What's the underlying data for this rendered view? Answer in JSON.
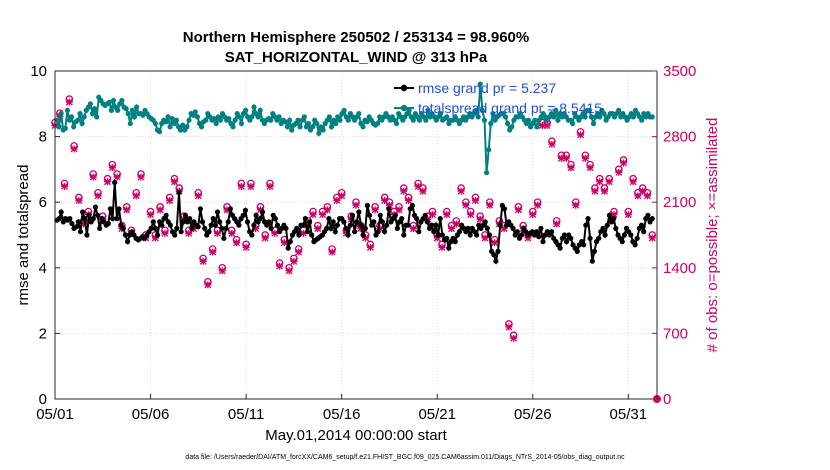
{
  "chart_data": {
    "type": "line",
    "title_line1": "Northern Hemisphere 250502 / 253134 = 98.960%",
    "title_line2": "SAT_HORIZONTAL_WIND @ 313 hPa",
    "xlabel": "May.01,2014 00:00:00 start",
    "ylabel": "rmse and totalspread",
    "ylabel_right": "# of obs: o=possible; ×=assimilated",
    "footnote": "data file: /Users/raeder/DAI/ATM_forcXX/CAM6_setup/f.e21.FHIST_BGC.f09_025.CAM6assim.011/Diags_NTrS_2014-05/obs_diag_output.nc",
    "xlim": [
      0,
      31.5
    ],
    "ylim": [
      0,
      10
    ],
    "ylim_right": [
      0,
      3500
    ],
    "x_ticks": [
      0,
      5,
      10,
      15,
      20,
      25,
      30
    ],
    "x_tick_labels": [
      "05/01",
      "05/06",
      "05/11",
      "05/16",
      "05/21",
      "05/26",
      "05/31"
    ],
    "y_ticks": [
      0,
      2,
      4,
      6,
      8,
      10
    ],
    "y_tick_labels": [
      "0",
      "2",
      "4",
      "6",
      "8",
      "10"
    ],
    "y_right_ticks": [
      0,
      700,
      1400,
      2100,
      2800,
      3500
    ],
    "y_right_tick_labels": [
      "0",
      "700",
      "1400",
      "2100",
      "2800",
      "3500"
    ],
    "grid": true,
    "series": [
      {
        "name": "rmse grand pr = 5.237",
        "color": "#000000",
        "values": [
          5.45,
          5.5,
          5.7,
          5.4,
          5.5,
          5.45,
          5.5,
          5.35,
          5.2,
          5.25,
          5.4,
          5.1,
          5.7,
          5.5,
          5.0,
          5.6,
          5.4,
          5.5,
          5.85,
          5.6,
          5.2,
          5.5,
          5.4,
          5.3,
          5.35,
          5.8,
          5.5,
          6.6,
          5.5,
          5.8,
          5.3,
          5.2,
          5.0,
          4.8,
          5.0,
          5.1,
          5.0,
          4.9,
          4.85,
          4.9,
          4.95,
          4.9,
          5.0,
          5.1,
          5.2,
          5.4,
          5.2,
          5.0,
          5.4,
          5.3,
          5.5,
          5.6,
          5.4,
          5.3,
          5.1,
          5.0,
          5.2,
          6.3,
          5.1,
          5.4,
          5.6,
          5.4,
          5.5,
          5.2,
          5.4,
          5.3,
          5.25,
          5.8,
          5.4,
          5.2,
          5.0,
          5.1,
          5.3,
          5.5,
          5.3,
          5.7,
          5.4,
          5.2,
          4.9,
          5.2,
          5.4,
          5.8,
          5.6,
          5.5,
          5.4,
          5.3,
          5.5,
          5.6,
          5.75,
          5.4,
          5.1,
          5.0,
          5.3,
          5.6,
          5.4,
          5.5,
          5.7,
          5.4,
          5.3,
          5.4,
          5.2,
          5.6,
          5.5,
          5.3,
          5.1,
          5.2,
          5.3,
          5.2,
          4.6,
          4.8,
          5.0,
          5.1,
          5.2,
          5.0,
          5.3,
          5.3,
          5.5,
          5.1,
          5.4,
          5.0,
          4.8,
          4.85,
          4.9,
          4.95,
          5.0,
          5.1,
          5.2,
          5.5,
          5.2,
          5.4,
          5.1,
          5.3,
          5.5,
          5.5,
          5.4,
          5.2,
          5.0,
          5.3,
          5.6,
          5.1,
          5.4,
          5.7,
          5.3,
          5.0,
          5.2,
          5.9,
          5.6,
          5.3,
          5.4,
          5.0,
          5.1,
          5.6,
          5.4,
          5.1,
          5.3,
          5.8,
          5.4,
          5.5,
          5.6,
          5.2,
          5.4,
          5.5,
          5.0,
          5.3,
          5.3,
          5.8,
          5.9,
          5.6,
          5.5,
          5.1,
          5.4,
          5.5,
          5.6,
          5.4,
          5.2,
          5.3,
          5.1,
          5.3,
          5.0,
          5.5,
          5.0,
          4.85,
          4.9,
          4.6,
          4.8,
          4.9,
          4.8,
          5.0,
          5.1,
          5.3,
          5.2,
          5.1,
          5.2,
          5.0,
          5.2,
          5.1,
          5.0,
          5.3,
          5.2,
          5.3,
          5.4,
          5.2,
          5.0,
          4.5,
          4.4,
          4.2,
          4.5,
          5.3,
          5.9,
          5.8,
          5.3,
          5.4,
          5.3,
          5.2,
          5.0,
          5.1,
          4.9,
          5.0,
          5.2,
          5.1,
          5.0,
          5.05,
          5.1,
          5.0,
          5.1,
          4.95,
          5.2,
          4.8,
          5.0,
          5.1,
          5.0,
          5.1,
          4.9,
          4.8,
          4.7,
          4.6,
          4.9,
          5.0,
          4.8,
          5.0,
          4.9,
          4.7,
          4.6,
          4.5,
          4.7,
          4.8,
          4.7,
          5.3,
          5.5,
          4.9,
          4.2,
          4.5,
          4.8,
          4.9,
          5.1,
          5.2,
          5.0,
          5.3,
          5.6,
          5.4,
          5.5,
          5.2,
          5.0,
          4.9,
          4.8,
          5.0,
          5.2,
          5.1,
          5.0,
          4.8,
          4.7,
          4.9,
          5.2,
          5.3,
          5.1,
          5.5,
          5.6,
          5.4,
          5.5
        ]
      },
      {
        "name": "totalspread grand pr = 8.5415",
        "color": "#008080",
        "values": [
          8.5,
          8.3,
          8.7,
          8.2,
          8.25,
          8.8,
          8.5,
          8.6,
          8.3,
          8.45,
          8.5,
          8.7,
          8.4,
          8.6,
          8.8,
          8.9,
          9.0,
          8.7,
          8.85,
          8.6,
          9.2,
          9.1,
          9.0,
          8.95,
          9.0,
          9.05,
          8.8,
          9.1,
          8.9,
          8.8,
          9.0,
          9.1,
          8.9,
          8.85,
          8.7,
          8.4,
          8.8,
          8.6,
          8.9,
          8.7,
          8.7,
          8.65,
          8.8,
          8.7,
          8.6,
          8.55,
          8.5,
          8.4,
          8.2,
          8.15,
          8.4,
          8.5,
          8.45,
          8.6,
          8.3,
          8.55,
          8.4,
          8.5,
          8.3,
          8.2,
          8.35,
          8.2,
          8.3,
          8.5,
          8.7,
          8.65,
          8.75,
          8.6,
          8.4,
          8.3,
          8.45,
          8.5,
          8.7,
          8.6,
          8.5,
          8.55,
          8.4,
          8.6,
          8.5,
          8.7,
          8.6,
          8.5,
          8.55,
          8.4,
          8.3,
          8.5,
          8.7,
          8.6,
          8.4,
          8.7,
          8.8,
          8.6,
          8.5,
          8.6,
          8.9,
          8.7,
          8.6,
          8.8,
          8.5,
          8.4,
          8.5,
          8.55,
          8.5,
          8.7,
          8.6,
          8.5,
          8.6,
          8.4,
          8.5,
          8.45,
          8.3,
          8.5,
          8.2,
          8.35,
          8.4,
          8.5,
          8.3,
          8.5,
          8.6,
          8.3,
          8.4,
          8.2,
          8.3,
          8.5,
          8.4,
          8.1,
          8.3,
          8.2,
          8.4,
          8.5,
          8.6,
          8.3,
          8.5,
          8.4,
          8.6,
          8.5,
          8.7,
          8.8,
          8.6,
          8.5,
          8.7,
          8.6,
          8.5,
          8.6,
          8.7,
          8.4,
          8.3,
          8.5,
          8.45,
          8.6,
          8.5,
          8.4,
          8.35,
          8.4,
          8.6,
          8.5,
          8.6,
          8.7,
          8.6,
          8.5,
          8.6,
          8.5,
          8.4,
          8.7,
          8.6,
          8.5,
          8.6,
          8.7,
          8.8,
          8.6,
          8.5,
          8.7,
          8.6,
          8.5,
          8.7,
          8.6,
          8.5,
          8.8,
          8.6,
          8.7,
          8.6,
          8.5,
          8.6,
          8.7,
          8.5,
          8.55,
          8.6,
          8.4,
          8.5,
          8.5,
          8.6,
          8.5,
          8.4,
          8.5,
          8.6,
          8.5,
          8.6,
          8.7,
          8.6,
          8.7,
          8.8,
          8.6,
          9.6,
          8.8,
          8.5,
          6.9,
          7.6,
          8.4,
          8.7,
          8.5,
          8.6,
          8.65,
          8.7,
          8.7,
          8.6,
          8.4,
          8.2,
          8.3,
          8.5,
          8.6,
          8.6,
          8.7,
          8.6,
          8.5,
          8.4,
          8.5,
          8.3,
          8.4,
          8.5,
          8.3,
          8.5,
          8.6,
          8.7,
          8.6,
          8.5,
          8.6,
          8.7,
          8.6,
          8.8,
          8.5,
          8.7,
          8.6,
          8.7,
          8.6,
          8.5,
          8.5,
          8.4,
          8.7,
          8.6,
          8.5,
          8.6,
          8.7,
          8.6,
          8.8,
          8.8,
          8.6,
          8.4,
          8.6,
          8.7,
          8.6,
          8.8,
          8.7,
          8.5,
          8.6,
          8.7,
          8.7,
          8.6,
          8.7,
          8.8,
          8.6,
          8.7,
          8.6,
          8.5,
          8.6,
          8.7,
          8.6,
          8.8,
          8.7,
          8.6,
          8.5,
          8.7,
          8.6,
          8.7,
          8.6,
          8.6
        ]
      }
    ],
    "obs_counts": {
      "name": "# of obs",
      "color": "#cc0066",
      "x": [
        0,
        0.25,
        0.5,
        0.75,
        1.0,
        1.25,
        1.5,
        1.75,
        2.0,
        2.25,
        2.5,
        2.75,
        3.0,
        3.25,
        3.5,
        3.75,
        4.0,
        4.25,
        4.5,
        4.75,
        5.0,
        5.25,
        5.5,
        5.75,
        6.0,
        6.25,
        6.5,
        6.75,
        7.0,
        7.25,
        7.5,
        7.75,
        8.0,
        8.25,
        8.5,
        8.75,
        9.0,
        9.25,
        9.5,
        9.75,
        10.0,
        10.25,
        10.5,
        10.75,
        11.0,
        11.25,
        11.5,
        11.75,
        12.0,
        12.25,
        12.5,
        12.75,
        13.0,
        13.25,
        13.5,
        13.75,
        14.0,
        14.25,
        14.5,
        14.75,
        15.0,
        15.25,
        15.5,
        15.75,
        16.0,
        16.25,
        16.5,
        16.75,
        17.0,
        17.25,
        17.5,
        17.75,
        18.0,
        18.25,
        18.5,
        18.75,
        19.0,
        19.25,
        19.5,
        19.75,
        20.0,
        20.25,
        20.5,
        20.75,
        21.0,
        21.25,
        21.5,
        21.75,
        22.0,
        22.25,
        22.5,
        22.75,
        23.0,
        23.25,
        23.5,
        23.75,
        24.0,
        24.25,
        24.5,
        24.75,
        25.0,
        25.25,
        25.5,
        25.75,
        26.0,
        26.25,
        26.5,
        26.75,
        27.0,
        27.25,
        27.5,
        27.75,
        28.0,
        28.25,
        28.5,
        28.75,
        29.0,
        29.25,
        29.5,
        29.75,
        30.0,
        30.25,
        30.5,
        30.75,
        31.0,
        31.25
      ],
      "possible": [
        2950,
        3050,
        2300,
        3200,
        2700,
        2150,
        1900,
        2000,
        2400,
        2200,
        1950,
        2350,
        2500,
        2400,
        1850,
        2050,
        1800,
        2200,
        2400,
        1750,
        2000,
        1750,
        2050,
        1800,
        2150,
        2350,
        2250,
        1950,
        1800,
        1850,
        2200,
        1500,
        1250,
        1600,
        1800,
        1400,
        2050,
        1800,
        1700,
        2300,
        1650,
        2300,
        1850,
        2050,
        1750,
        2300,
        1800,
        1450,
        1700,
        1400,
        1500,
        1600,
        1800,
        1900,
        2000,
        1850,
        2000,
        2050,
        1600,
        2150,
        2200,
        1800,
        1950,
        2100,
        1850,
        1750,
        1650,
        2050,
        1850,
        2150,
        2100,
        2000,
        2050,
        2250,
        2150,
        1850,
        2300,
        2250,
        1950,
        2000,
        1750,
        1650,
        2000,
        1850,
        1900,
        2250,
        2100,
        2000,
        2150,
        1950,
        1750,
        2100,
        1700,
        1900,
        1850,
        800,
        680,
        2050,
        1850,
        1750,
        2000,
        2100,
        2950,
        2950,
        2750,
        1900,
        2600,
        2600,
        2500,
        2100,
        2850,
        2600,
        2500,
        2250,
        2350,
        2250,
        2350,
        2000,
        2450,
        2550,
        2000,
        2350,
        2200,
        2250,
        2200,
        1750
      ]
    },
    "legend_position": "top-right"
  }
}
